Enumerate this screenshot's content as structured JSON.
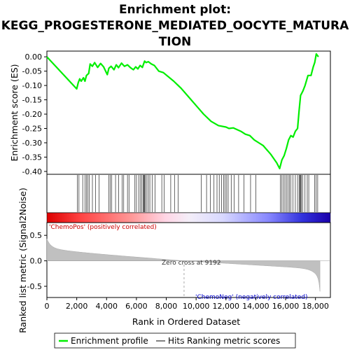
{
  "chart_data": {
    "type": "line",
    "title_lines": [
      "Enrichment plot:",
      "KEGG_PROGESTERONE_MEDIATED_OOCYTE_MATURA",
      "TION"
    ],
    "top_panel": {
      "ylabel": "Enrichment score (ES)",
      "ylim": [
        -0.41,
        0.02
      ],
      "yticks": [
        "0.00",
        "-0.05",
        "-0.10",
        "-0.15",
        "-0.20",
        "-0.25",
        "-0.30",
        "-0.35",
        "-0.40"
      ],
      "ytick_values": [
        0.0,
        -0.05,
        -0.1,
        -0.15,
        -0.2,
        -0.25,
        -0.3,
        -0.35,
        -0.4
      ],
      "series": [
        {
          "name": "Enrichment profile",
          "color": "#00ee00",
          "x": [
            0,
            2000,
            2100,
            2200,
            2300,
            2450,
            2550,
            2650,
            2800,
            2900,
            3050,
            3200,
            3400,
            3600,
            3800,
            4050,
            4150,
            4300,
            4500,
            4650,
            4800,
            5000,
            5200,
            5400,
            5600,
            5800,
            5950,
            6100,
            6250,
            6400,
            6550,
            6650,
            6800,
            7000,
            7200,
            7500,
            7800,
            8500,
            9000,
            9500,
            10000,
            10500,
            11000,
            11500,
            12000,
            12200,
            12500,
            13000,
            13300,
            13600,
            13900,
            14200,
            14500,
            15000,
            15400,
            15600,
            15750,
            15900,
            16050,
            16200,
            16350,
            16500,
            16650,
            16800,
            16900,
            17000,
            17150,
            17300,
            17500,
            17700,
            17850,
            17950,
            18050,
            18200
          ],
          "y": [
            0.0,
            -0.112,
            -0.09,
            -0.077,
            -0.085,
            -0.073,
            -0.085,
            -0.065,
            -0.058,
            -0.025,
            -0.033,
            -0.02,
            -0.037,
            -0.023,
            -0.035,
            -0.062,
            -0.04,
            -0.033,
            -0.045,
            -0.028,
            -0.038,
            -0.022,
            -0.033,
            -0.028,
            -0.038,
            -0.045,
            -0.035,
            -0.042,
            -0.03,
            -0.037,
            -0.015,
            -0.02,
            -0.017,
            -0.025,
            -0.03,
            -0.05,
            -0.055,
            -0.085,
            -0.11,
            -0.14,
            -0.17,
            -0.2,
            -0.225,
            -0.24,
            -0.245,
            -0.25,
            -0.248,
            -0.26,
            -0.27,
            -0.275,
            -0.29,
            -0.3,
            -0.31,
            -0.34,
            -0.37,
            -0.39,
            -0.36,
            -0.345,
            -0.32,
            -0.29,
            -0.275,
            -0.28,
            -0.26,
            -0.25,
            -0.19,
            -0.135,
            -0.12,
            -0.1,
            -0.065,
            -0.065,
            -0.035,
            -0.02,
            0.01,
            0.0
          ]
        }
      ]
    },
    "hits": [
      2050,
      2150,
      2400,
      2550,
      2650,
      2750,
      2850,
      3050,
      3250,
      3500,
      4150,
      4250,
      4350,
      4600,
      4800,
      5050,
      5150,
      5400,
      5500,
      5900,
      6000,
      6150,
      6250,
      6350,
      6450,
      6500,
      6550,
      6600,
      6700,
      6800,
      6900,
      7050,
      7250,
      7700,
      7850,
      8300,
      8550,
      8800,
      10350,
      10700,
      10950,
      11200,
      11400,
      11550,
      11700,
      11850,
      11950,
      12050,
      12150,
      12350,
      12550,
      12850,
      13200,
      13650,
      14000,
      15650,
      15750,
      15850,
      15950,
      16050,
      16150,
      16250,
      16350,
      16500,
      16650,
      16800,
      16900,
      16950,
      17000,
      17050,
      17150,
      17300,
      17450,
      17550,
      17950,
      18050,
      18150
    ],
    "heatmap_labels": {
      "pos": "'ChemoPos' (positively correlated)",
      "neg": "'ChemoNeg' (negatively correlated)",
      "pos_color": "#ff3333",
      "neg_color": "#3333ff"
    },
    "bottom_panel": {
      "ylabel": "Ranked list metric (Signal2Noise)",
      "xlabel": "Rank in Ordered Dataset",
      "xlim": [
        0,
        19000
      ],
      "xticks": [
        "0",
        "2,000",
        "4,000",
        "6,000",
        "8,000",
        "10,000",
        "12,000",
        "14,000",
        "16,000",
        "18,000"
      ],
      "xtick_values": [
        0,
        2000,
        4000,
        6000,
        8000,
        10000,
        12000,
        14000,
        16000,
        18000
      ],
      "ylim": [
        -0.72,
        0.75
      ],
      "yticks": [
        "0.5",
        "0.0",
        "-0.5"
      ],
      "ytick_values": [
        0.5,
        0.0,
        -0.5
      ],
      "zero_cross_label": "Zero cross at 9192",
      "zero_cross": 9192,
      "n_ranks": 18300,
      "metric_fill_color": "#c0c0c0"
    },
    "legend": [
      "Enrichment profile",
      "Hits",
      "Ranking metric scores"
    ]
  }
}
